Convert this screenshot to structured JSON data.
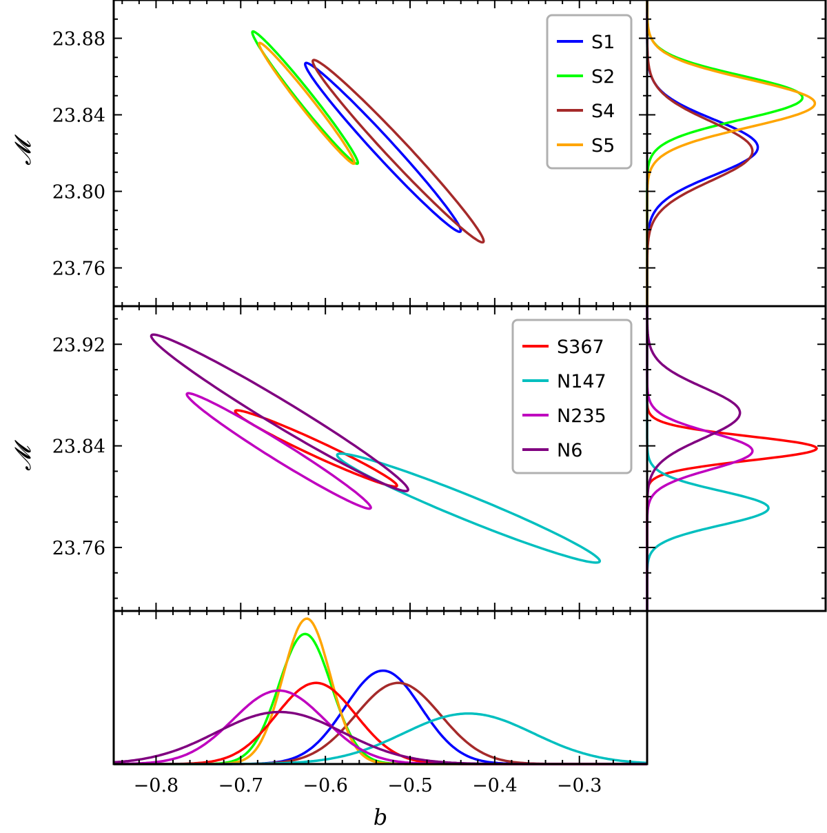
{
  "chart_data": [
    {
      "panel": "top",
      "type": "contour",
      "xlabel": "b",
      "ylabel": "𝓜",
      "xlim": [
        -0.85,
        -0.22
      ],
      "ylim": [
        23.74,
        23.9
      ],
      "yticks": [
        23.76,
        23.8,
        23.84,
        23.88
      ],
      "ytick_labels": [
        "23.76",
        "23.80",
        "23.84",
        "23.88"
      ],
      "legend_position": "top-right",
      "series": [
        {
          "name": "S1",
          "color": "#0000ff",
          "center": [
            -0.532,
            23.823
          ],
          "extent": [
            [
              -0.624,
              23.867
            ],
            [
              -0.441,
              23.779
            ]
          ]
        },
        {
          "name": "S2",
          "color": "#00ff00",
          "center": [
            -0.624,
            23.849
          ],
          "extent": [
            [
              -0.686,
              23.884
            ],
            [
              -0.562,
              23.815
            ]
          ]
        },
        {
          "name": "S4",
          "color": "#a52a2a",
          "center": [
            -0.514,
            23.821
          ],
          "extent": [
            [
              -0.614,
              23.869
            ],
            [
              -0.413,
              23.774
            ]
          ]
        },
        {
          "name": "S5",
          "color": "#ffa500",
          "center": [
            -0.622,
            23.846
          ],
          "extent": [
            [
              -0.678,
              23.878
            ],
            [
              -0.566,
              23.815
            ]
          ]
        }
      ]
    },
    {
      "panel": "middle",
      "type": "contour",
      "xlabel": "b",
      "ylabel": "𝓜",
      "xlim": [
        -0.85,
        -0.22
      ],
      "ylim": [
        23.71,
        23.95
      ],
      "yticks": [
        23.76,
        23.84,
        23.92
      ],
      "ytick_labels": [
        "23.76",
        "23.84",
        "23.92"
      ],
      "legend_position": "top-right",
      "series": [
        {
          "name": "S367",
          "color": "#ff0000",
          "center": [
            -0.611,
            23.838
          ],
          "extent": [
            [
              -0.706,
              23.868
            ],
            [
              -0.515,
              23.809
            ]
          ]
        },
        {
          "name": "N147",
          "color": "#00bfbf",
          "center": [
            -0.431,
            23.791
          ],
          "extent": [
            [
              -0.585,
              23.832
            ],
            [
              -0.275,
              23.748
            ]
          ]
        },
        {
          "name": "N235",
          "color": "#bf00bf",
          "center": [
            -0.655,
            23.836
          ],
          "extent": [
            [
              -0.764,
              23.881
            ],
            [
              -0.547,
              23.791
            ]
          ]
        },
        {
          "name": "N6",
          "color": "#800080",
          "center": [
            -0.654,
            23.866
          ],
          "extent": [
            [
              -0.805,
              23.928
            ],
            [
              -0.502,
              23.806
            ]
          ]
        }
      ]
    },
    {
      "panel": "bottom",
      "type": "line",
      "xlabel": "b",
      "xlim": [
        -0.85,
        -0.22
      ],
      "xticks": [
        -0.8,
        -0.7,
        -0.6,
        -0.5,
        -0.4,
        -0.3
      ],
      "xtick_labels": [
        "−0.8",
        "−0.7",
        "−0.6",
        "−0.5",
        "−0.4",
        "−0.3"
      ],
      "series": [
        {
          "name": "S1",
          "color": "#0000ff",
          "mean": -0.532,
          "sd": 0.045,
          "peak": 0.61
        },
        {
          "name": "S2",
          "color": "#00ff00",
          "mean": -0.624,
          "sd": 0.031,
          "peak": 0.85
        },
        {
          "name": "S4",
          "color": "#a52a2a",
          "mean": -0.514,
          "sd": 0.05,
          "peak": 0.53
        },
        {
          "name": "S5",
          "color": "#ffa500",
          "mean": -0.622,
          "sd": 0.028,
          "peak": 0.95
        },
        {
          "name": "S367",
          "color": "#ff0000",
          "mean": -0.611,
          "sd": 0.047,
          "peak": 0.53
        },
        {
          "name": "N147",
          "color": "#00bfbf",
          "mean": -0.431,
          "sd": 0.077,
          "peak": 0.33
        },
        {
          "name": "N235",
          "color": "#bf00bf",
          "mean": -0.655,
          "sd": 0.054,
          "peak": 0.48
        },
        {
          "name": "N6",
          "color": "#800080",
          "mean": -0.654,
          "sd": 0.075,
          "peak": 0.34
        }
      ]
    },
    {
      "panel": "right-top",
      "type": "line",
      "ylim": [
        23.74,
        23.9
      ],
      "series": [
        {
          "name": "S1",
          "color": "#0000ff",
          "mean": 23.823,
          "sd": 0.0145,
          "peak": 0.62
        },
        {
          "name": "S2",
          "color": "#00ff00",
          "mean": 23.849,
          "sd": 0.0115,
          "peak": 0.87
        },
        {
          "name": "S4",
          "color": "#a52a2a",
          "mean": 23.821,
          "sd": 0.0155,
          "peak": 0.59
        },
        {
          "name": "S5",
          "color": "#ffa500",
          "mean": 23.846,
          "sd": 0.0125,
          "peak": 0.94
        }
      ]
    },
    {
      "panel": "right-middle",
      "type": "line",
      "ylim": [
        23.71,
        23.95
      ],
      "series": [
        {
          "name": "S367",
          "color": "#ff0000",
          "mean": 23.838,
          "sd": 0.0095,
          "peak": 0.95
        },
        {
          "name": "N147",
          "color": "#00bfbf",
          "mean": 23.791,
          "sd": 0.0135,
          "peak": 0.68
        },
        {
          "name": "N235",
          "color": "#bf00bf",
          "mean": 23.836,
          "sd": 0.0145,
          "peak": 0.59
        },
        {
          "name": "N6",
          "color": "#800080",
          "mean": 23.866,
          "sd": 0.02,
          "peak": 0.52
        }
      ]
    }
  ]
}
